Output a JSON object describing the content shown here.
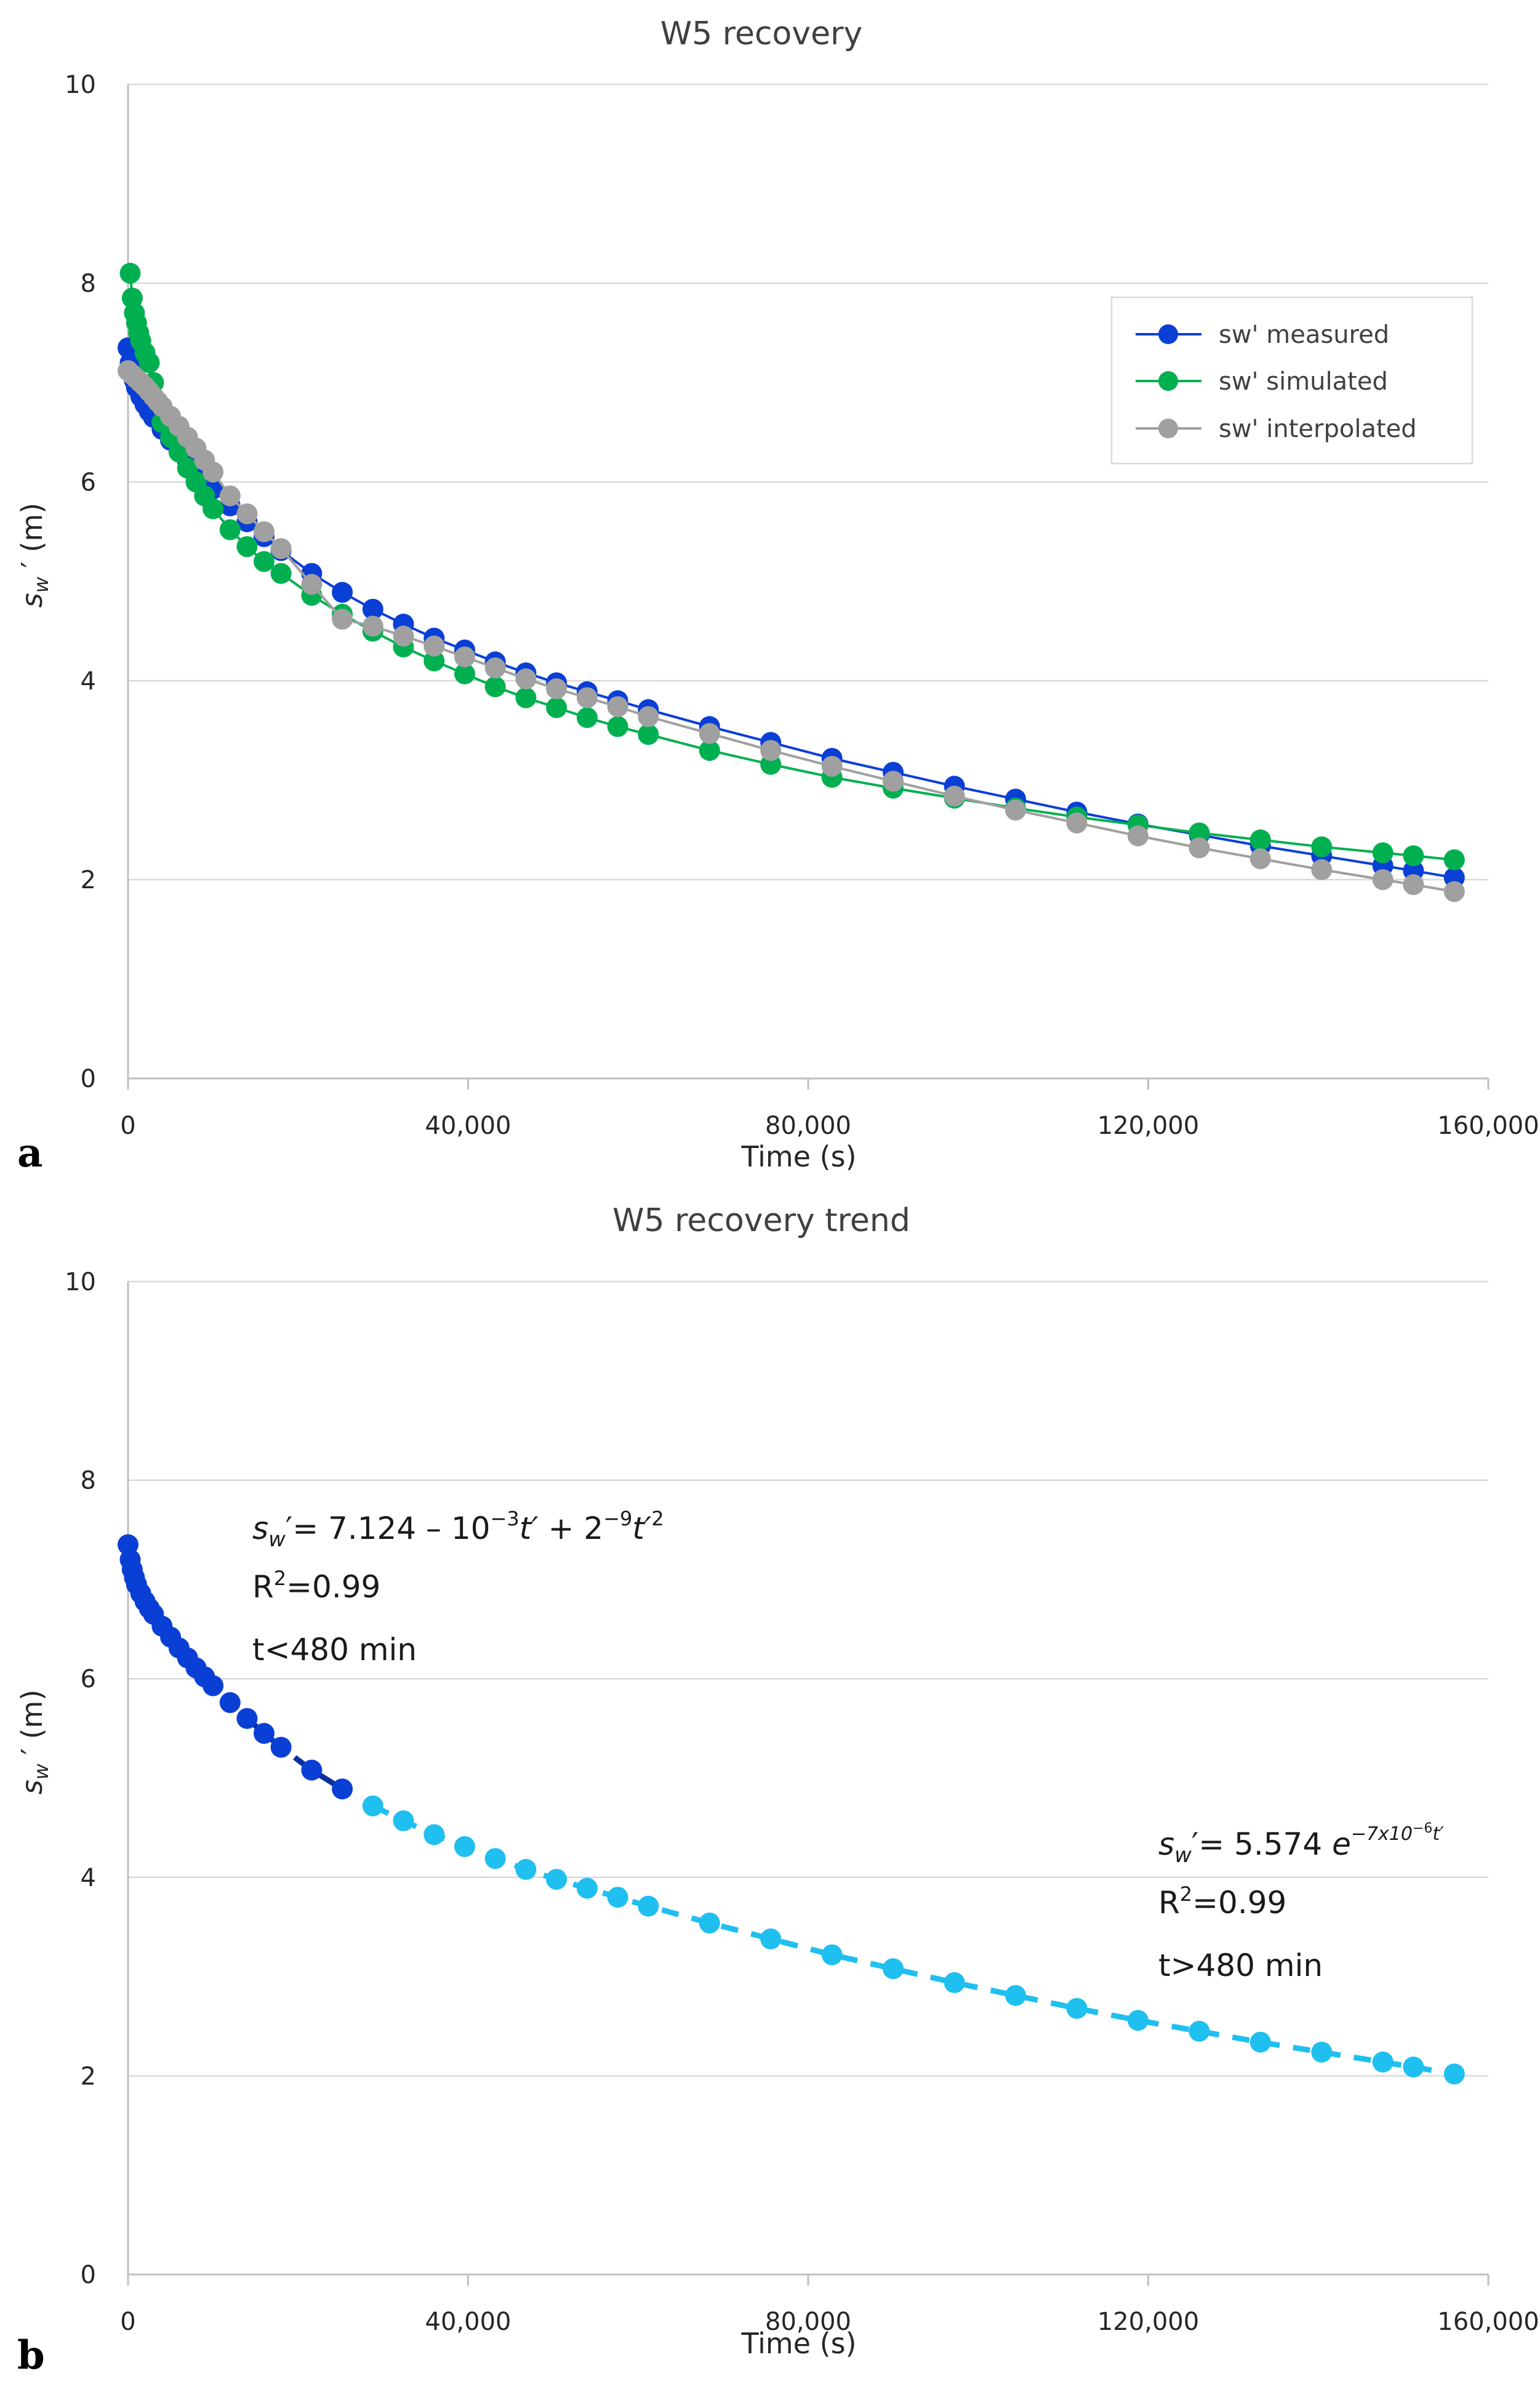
{
  "chart_data": [
    {
      "panel": "a",
      "type": "line",
      "title": "W5 recovery",
      "xlabel": "Time (s)",
      "ylabel_main": "s",
      "ylabel_sub": "w",
      "ylabel_rest": " ′ (m)",
      "xlim": [
        0,
        160000
      ],
      "ylim": [
        0,
        10
      ],
      "xticks": [
        0,
        40000,
        80000,
        120000,
        160000
      ],
      "xtick_labels": [
        "0",
        "40,000",
        "80,000",
        "120,000",
        "160,000"
      ],
      "yticks": [
        0,
        2,
        4,
        6,
        8,
        10
      ],
      "ytick_labels": [
        "0",
        "2",
        "4",
        "6",
        "8",
        "10"
      ],
      "legend_position": "top-right",
      "series": [
        {
          "name": "sw' measured",
          "color": "#0a3fd6",
          "x": [
            0,
            250,
            500,
            750,
            1000,
            1500,
            2000,
            2500,
            3000,
            4000,
            5000,
            6000,
            7000,
            8000,
            9000,
            10000,
            12000,
            14000,
            16000,
            18000,
            21600,
            25200,
            28800,
            32400,
            36000,
            39600,
            43200,
            46800,
            50400,
            54000,
            57600,
            61200,
            68400,
            75600,
            82800,
            90000,
            97200,
            104400,
            111600,
            118800,
            126000,
            133200,
            140400,
            147600,
            151200,
            156000
          ],
          "y": [
            7.35,
            7.2,
            7.1,
            7.02,
            6.95,
            6.86,
            6.78,
            6.71,
            6.65,
            6.53,
            6.42,
            6.31,
            6.21,
            6.11,
            6.02,
            5.93,
            5.76,
            5.6,
            5.45,
            5.31,
            5.08,
            4.89,
            4.72,
            4.57,
            4.43,
            4.31,
            4.19,
            4.08,
            3.98,
            3.89,
            3.8,
            3.71,
            3.54,
            3.38,
            3.22,
            3.08,
            2.94,
            2.81,
            2.68,
            2.56,
            2.45,
            2.34,
            2.24,
            2.14,
            2.09,
            2.02
          ]
        },
        {
          "name": "sw' simulated",
          "color": "#00b050",
          "x": [
            250,
            500,
            750,
            1000,
            1250,
            1500,
            2000,
            2500,
            3000,
            4000,
            5000,
            6000,
            7000,
            8000,
            9000,
            10000,
            12000,
            14000,
            16000,
            18000,
            21600,
            25200,
            28800,
            32400,
            36000,
            39600,
            43200,
            46800,
            50400,
            54000,
            57600,
            61200,
            68400,
            75600,
            82800,
            90000,
            97200,
            104400,
            111600,
            118800,
            126000,
            133200,
            140400,
            147600,
            151200,
            156000
          ],
          "y": [
            8.1,
            7.85,
            7.7,
            7.6,
            7.5,
            7.42,
            7.3,
            7.2,
            7.0,
            6.6,
            6.45,
            6.3,
            6.14,
            6.0,
            5.86,
            5.73,
            5.52,
            5.35,
            5.2,
            5.08,
            4.86,
            4.67,
            4.5,
            4.34,
            4.2,
            4.07,
            3.94,
            3.83,
            3.73,
            3.63,
            3.54,
            3.46,
            3.3,
            3.16,
            3.03,
            2.92,
            2.82,
            2.72,
            2.63,
            2.55,
            2.47,
            2.4,
            2.33,
            2.27,
            2.24,
            2.2
          ]
        },
        {
          "name": "sw' interpolated",
          "color": "#a0a0a0",
          "x": [
            0,
            500,
            1000,
            1500,
            2000,
            2500,
            3000,
            3500,
            4000,
            5000,
            6000,
            7000,
            8000,
            9000,
            10000,
            12000,
            14000,
            16000,
            18000,
            21600,
            25200,
            28800,
            32400,
            36000,
            39600,
            43200,
            46800,
            50400,
            54000,
            57600,
            61200,
            68400,
            75600,
            82800,
            90000,
            97200,
            104400,
            111600,
            118800,
            126000,
            133200,
            140400,
            147600,
            151200,
            156000
          ],
          "y": [
            7.12,
            7.08,
            7.04,
            7.0,
            6.96,
            6.91,
            6.86,
            6.81,
            6.76,
            6.66,
            6.56,
            6.45,
            6.34,
            6.22,
            6.1,
            5.86,
            5.68,
            5.5,
            5.33,
            4.97,
            4.62,
            4.55,
            4.45,
            4.35,
            4.24,
            4.13,
            4.02,
            3.92,
            3.83,
            3.74,
            3.64,
            3.47,
            3.3,
            3.14,
            2.99,
            2.84,
            2.7,
            2.57,
            2.44,
            2.32,
            2.21,
            2.1,
            2.0,
            1.95,
            1.88
          ]
        }
      ]
    },
    {
      "panel": "b",
      "type": "line",
      "title": "W5 recovery trend",
      "xlabel": "Time (s)",
      "ylabel_main": "s",
      "ylabel_sub": "w",
      "ylabel_rest": " ′ (m)",
      "xlim": [
        0,
        160000
      ],
      "ylim": [
        0,
        10
      ],
      "xticks": [
        0,
        40000,
        80000,
        120000,
        160000
      ],
      "xtick_labels": [
        "0",
        "40,000",
        "80,000",
        "120,000",
        "160,000"
      ],
      "yticks": [
        0,
        2,
        4,
        6,
        8,
        10
      ],
      "ytick_labels": [
        "0",
        "2",
        "4",
        "6",
        "8",
        "10"
      ],
      "series": [
        {
          "name": "t<480 min",
          "color": "#0a3fd6",
          "dashed_color": "#0a2f9e",
          "x": [
            0,
            250,
            500,
            750,
            1000,
            1500,
            2000,
            2500,
            3000,
            4000,
            5000,
            6000,
            7000,
            8000,
            9000,
            10000,
            12000,
            14000,
            16000,
            18000,
            21600,
            25200
          ],
          "y": [
            7.35,
            7.2,
            7.1,
            7.02,
            6.95,
            6.86,
            6.78,
            6.71,
            6.65,
            6.53,
            6.42,
            6.31,
            6.21,
            6.11,
            6.02,
            5.93,
            5.76,
            5.6,
            5.45,
            5.31,
            5.08,
            4.89
          ]
        },
        {
          "name": "t>480 min",
          "color": "#1fbff0",
          "dashed_color": "#1fbff0",
          "x": [
            28800,
            32400,
            36000,
            39600,
            43200,
            46800,
            50400,
            54000,
            57600,
            61200,
            68400,
            75600,
            82800,
            90000,
            97200,
            104400,
            111600,
            118800,
            126000,
            133200,
            140400,
            147600,
            151200,
            156000
          ],
          "y": [
            4.72,
            4.57,
            4.43,
            4.31,
            4.19,
            4.08,
            3.98,
            3.89,
            3.8,
            3.71,
            3.54,
            3.38,
            3.22,
            3.08,
            2.94,
            2.81,
            2.68,
            2.56,
            2.45,
            2.34,
            2.24,
            2.14,
            2.09,
            2.02
          ]
        }
      ],
      "annotations": {
        "eq1": {
          "lhs": "s",
          "lhs_sub": "w",
          "lhs_rest": "′= 7.124 – 10",
          "exp1": "−3",
          "t1": "t′",
          "plus": " + 2",
          "exp2": "−9",
          "t2": "t′",
          "exp3": "2",
          "r2_prefix": "R",
          "r2_exp": "2",
          "r2_value": "=0.99",
          "range": "t<480 min"
        },
        "eq2": {
          "lhs": "s",
          "lhs_sub": "w",
          "lhs_rest": "′= 5.574 ",
          "e": "e",
          "exp": "−7x10",
          "exp_exp": "−6",
          "exp_t": "t′",
          "r2_prefix": "R",
          "r2_exp": "2",
          "r2_value": "=0.99",
          "range": "t>480 min"
        }
      }
    }
  ]
}
